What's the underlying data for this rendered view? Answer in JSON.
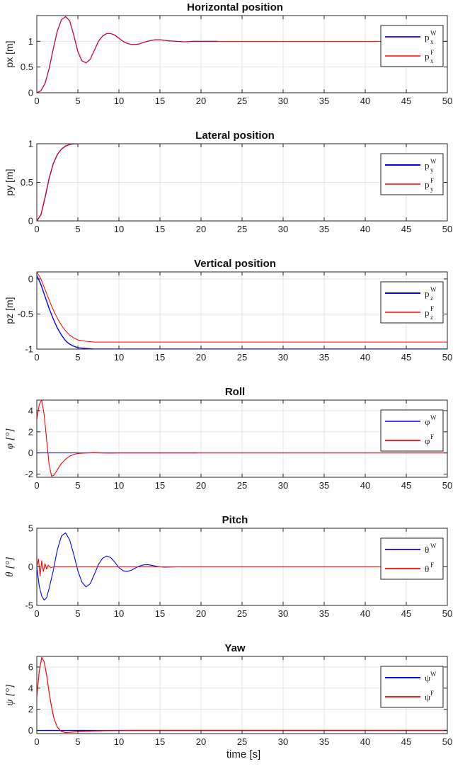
{
  "chart_data": [
    {
      "type": "line",
      "title": "Horizontal position",
      "ylabel": "px [m]",
      "ylabel_style": "plain",
      "xlim": [
        0,
        50
      ],
      "ylim": [
        0,
        1.5
      ],
      "xticks": [
        0,
        5,
        10,
        15,
        20,
        25,
        30,
        35,
        40,
        45,
        50
      ],
      "yticks": [
        0,
        0.5,
        1
      ],
      "grid": true,
      "legend_placement": "top-right",
      "series": [
        {
          "name": "p_x^W",
          "base": "p",
          "sub": "x",
          "sup": "W",
          "color": "#0000ff",
          "width": 1.2,
          "x": [
            0,
            0.5,
            1,
            1.5,
            2,
            2.5,
            3,
            3.5,
            4,
            4.5,
            5,
            5.5,
            6,
            6.5,
            7,
            7.5,
            8,
            8.5,
            9,
            9.5,
            10,
            10.5,
            11,
            11.5,
            12,
            12.5,
            13,
            13.5,
            14,
            14.5,
            15,
            15.5,
            16,
            17,
            18,
            19,
            20,
            21,
            22
          ],
          "y": [
            0,
            0.04,
            0.18,
            0.47,
            0.85,
            1.2,
            1.42,
            1.48,
            1.4,
            1.12,
            0.8,
            0.62,
            0.58,
            0.65,
            0.82,
            1.0,
            1.1,
            1.15,
            1.15,
            1.12,
            1.06,
            1.0,
            0.96,
            0.94,
            0.94,
            0.95,
            0.98,
            1.0,
            1.02,
            1.03,
            1.03,
            1.02,
            1.01,
            1.0,
            0.99,
            1.0,
            1.0,
            1.0,
            1.0
          ]
        },
        {
          "name": "p_x^F",
          "base": "p",
          "sub": "x",
          "sup": "F",
          "color": "#ff0000",
          "width": 1.0,
          "x": [
            0,
            0.5,
            1,
            1.5,
            2,
            2.5,
            3,
            3.5,
            4,
            4.5,
            5,
            5.5,
            6,
            6.5,
            7,
            7.5,
            8,
            8.5,
            9,
            9.5,
            10,
            10.5,
            11,
            11.5,
            12,
            12.5,
            13,
            13.5,
            14,
            14.5,
            15,
            15.5,
            16,
            17,
            18,
            19,
            20,
            21,
            22,
            50
          ],
          "y": [
            0,
            0.04,
            0.18,
            0.47,
            0.85,
            1.2,
            1.42,
            1.48,
            1.4,
            1.12,
            0.8,
            0.62,
            0.58,
            0.65,
            0.82,
            1.0,
            1.1,
            1.15,
            1.15,
            1.12,
            1.06,
            1.0,
            0.96,
            0.94,
            0.94,
            0.95,
            0.98,
            1.0,
            1.02,
            1.03,
            1.03,
            1.02,
            1.01,
            1.0,
            0.99,
            1.0,
            1.0,
            1.0,
            1.0,
            1.0
          ]
        }
      ]
    },
    {
      "type": "line",
      "title": "Lateral position",
      "ylabel": "py [m]",
      "ylabel_style": "plain",
      "xlim": [
        0,
        50
      ],
      "ylim": [
        0,
        1
      ],
      "xticks": [
        0,
        5,
        10,
        15,
        20,
        25,
        30,
        35,
        40,
        45,
        50
      ],
      "yticks": [
        0,
        0.5,
        1
      ],
      "grid": true,
      "legend_placement": "top-right",
      "series": [
        {
          "name": "p_y^W",
          "base": "p",
          "sub": "y",
          "sup": "W",
          "color": "#0000ff",
          "width": 1.4,
          "x": [
            0,
            0.5,
            1,
            1.5,
            2,
            2.5,
            3,
            3.5,
            4,
            4.5,
            5
          ],
          "y": [
            0,
            0.08,
            0.3,
            0.55,
            0.74,
            0.86,
            0.93,
            0.97,
            0.99,
            1.0,
            1.0
          ]
        },
        {
          "name": "p_y^F",
          "base": "p",
          "sub": "y",
          "sup": "F",
          "color": "#ff0000",
          "width": 1.0,
          "x": [
            0,
            0.5,
            1,
            1.5,
            2,
            2.5,
            3,
            3.5,
            4,
            4.5,
            5,
            50
          ],
          "y": [
            0,
            0.08,
            0.3,
            0.55,
            0.74,
            0.86,
            0.93,
            0.97,
            0.99,
            1.0,
            1.0,
            1.0
          ]
        }
      ]
    },
    {
      "type": "line",
      "title": "Vertical position",
      "ylabel": "pz [m]",
      "ylabel_style": "plain",
      "xlim": [
        0,
        50
      ],
      "ylim": [
        -1,
        0.1
      ],
      "xticks": [
        0,
        5,
        10,
        15,
        20,
        25,
        30,
        35,
        40,
        45,
        50
      ],
      "yticks": [
        -1,
        -0.5,
        0
      ],
      "grid": true,
      "legend_placement": "top-right",
      "series": [
        {
          "name": "p_z^W",
          "base": "p",
          "sub": "z",
          "sup": "W",
          "color": "#0000ff",
          "width": 1.4,
          "x": [
            0,
            0.5,
            1,
            1.5,
            2,
            2.5,
            3,
            3.5,
            4,
            4.5,
            5,
            6,
            7,
            8,
            50
          ],
          "y": [
            0.05,
            -0.08,
            -0.25,
            -0.42,
            -0.57,
            -0.7,
            -0.8,
            -0.88,
            -0.93,
            -0.96,
            -0.98,
            -0.99,
            -1.0,
            -1.0,
            -1.0
          ]
        },
        {
          "name": "p_z^F",
          "base": "p",
          "sub": "z",
          "sup": "F",
          "color": "#ff0000",
          "width": 1.0,
          "x": [
            0,
            0.5,
            1,
            1.5,
            2,
            2.5,
            3,
            3.5,
            4,
            4.5,
            5,
            6,
            7,
            8,
            50
          ],
          "y": [
            0.1,
            0.0,
            -0.15,
            -0.3,
            -0.44,
            -0.56,
            -0.66,
            -0.74,
            -0.8,
            -0.84,
            -0.87,
            -0.89,
            -0.9,
            -0.9,
            -0.9
          ]
        }
      ]
    },
    {
      "type": "line",
      "title": "Roll",
      "ylabel": "φ [°]",
      "ylabel_style": "greek",
      "xlim": [
        0,
        50
      ],
      "ylim": [
        -2.3,
        5
      ],
      "xticks": [
        0,
        5,
        10,
        15,
        20,
        25,
        30,
        35,
        40,
        45,
        50
      ],
      "yticks": [
        -2,
        0,
        2,
        4
      ],
      "grid": true,
      "legend_placement": "top-right",
      "series": [
        {
          "name": "φ^W",
          "base": "φ",
          "sub": "",
          "sup": "W",
          "color": "#0000ff",
          "width": 1.0,
          "x": [
            0,
            2,
            4,
            6,
            8,
            10,
            12,
            14,
            16,
            18,
            19.5
          ],
          "y": [
            0,
            0,
            0,
            0,
            0,
            0,
            0,
            0,
            0,
            0,
            0
          ]
        },
        {
          "name": "φ^F",
          "base": "φ",
          "sub": "",
          "sup": "F",
          "color": "#ff0000",
          "width": 1.1,
          "x": [
            0,
            0.3,
            0.6,
            0.9,
            1.2,
            1.5,
            1.8,
            2.1,
            2.5,
            3,
            3.5,
            4,
            4.5,
            5,
            6,
            7,
            8,
            9,
            10,
            11,
            12,
            13,
            14,
            15,
            16,
            17,
            18,
            19,
            20,
            50
          ],
          "y": [
            3.2,
            4.6,
            5.0,
            3.6,
            1.2,
            -1.1,
            -2.2,
            -2.1,
            -1.6,
            -1.0,
            -0.6,
            -0.3,
            -0.15,
            -0.05,
            0.0,
            0.03,
            0.0,
            -0.02,
            0.0,
            0.0,
            0.0,
            0.0,
            0.0,
            0.0,
            0.0,
            0.0,
            0.0,
            0.0,
            0.0,
            0.0
          ]
        }
      ]
    },
    {
      "type": "line",
      "title": "Pitch",
      "ylabel": "θ [°]",
      "ylabel_style": "greek",
      "xlim": [
        0,
        50
      ],
      "ylim": [
        -5,
        5
      ],
      "xticks": [
        0,
        5,
        10,
        15,
        20,
        25,
        30,
        35,
        40,
        45,
        50
      ],
      "yticks": [
        -5,
        0,
        5
      ],
      "grid": true,
      "legend_placement": "top-right",
      "series": [
        {
          "name": "θ^W",
          "base": "θ",
          "sub": "",
          "sup": "W",
          "color": "#0000ff",
          "width": 1.1,
          "x": [
            0,
            0.3,
            0.6,
            0.9,
            1.2,
            1.5,
            2,
            2.5,
            3,
            3.5,
            4,
            4.5,
            5,
            5.5,
            6,
            6.5,
            7,
            7.5,
            8,
            8.5,
            9,
            9.5,
            10,
            10.5,
            11,
            11.5,
            12,
            12.5,
            13,
            13.5,
            14,
            14.5,
            15,
            15.5,
            16,
            17,
            18
          ],
          "y": [
            0,
            -2.5,
            -3.8,
            -4.3,
            -4.0,
            -2.8,
            -0.5,
            2.2,
            4.0,
            4.4,
            3.5,
            1.6,
            -0.5,
            -2.0,
            -2.6,
            -2.2,
            -1.0,
            0.3,
            1.1,
            1.4,
            1.2,
            0.6,
            -0.1,
            -0.5,
            -0.6,
            -0.45,
            -0.15,
            0.1,
            0.25,
            0.28,
            0.2,
            0.08,
            0.0,
            -0.04,
            -0.03,
            0.0,
            0.0
          ]
        },
        {
          "name": "θ^F",
          "base": "θ",
          "sub": "",
          "sup": "F",
          "color": "#ff0000",
          "width": 1.1,
          "x": [
            0,
            0.2,
            0.4,
            0.6,
            0.8,
            1.0,
            1.2,
            1.4,
            1.7,
            2,
            3,
            50
          ],
          "y": [
            0,
            1.0,
            -1.2,
            0.8,
            -0.6,
            0.4,
            -0.3,
            0.2,
            -0.1,
            0.0,
            0.0,
            0.0
          ]
        }
      ]
    },
    {
      "type": "line",
      "title": "Yaw",
      "ylabel": "ψ [°]",
      "ylabel_style": "greek",
      "xlabel": "time [s]",
      "xlim": [
        0,
        50
      ],
      "ylim": [
        -0.3,
        7
      ],
      "xticks": [
        0,
        5,
        10,
        15,
        20,
        25,
        30,
        35,
        40,
        45,
        50
      ],
      "yticks": [
        0,
        2,
        4,
        6
      ],
      "grid": true,
      "legend_placement": "top-right",
      "series": [
        {
          "name": "ψ^W",
          "base": "ψ",
          "sub": "",
          "sup": "W",
          "color": "#0000ff",
          "width": 1.4,
          "x": [
            0,
            5,
            10,
            15,
            20,
            25,
            30,
            35,
            40,
            45,
            50
          ],
          "y": [
            0,
            0,
            0,
            0,
            0,
            0,
            0,
            0,
            0,
            0,
            0
          ]
        },
        {
          "name": "ψ^F",
          "base": "ψ",
          "sub": "",
          "sup": "F",
          "color": "#ff0000",
          "width": 1.2,
          "x": [
            0,
            0.3,
            0.6,
            0.9,
            1.2,
            1.5,
            1.8,
            2.1,
            2.5,
            3,
            3.5,
            4,
            4.5,
            5,
            6,
            7,
            8,
            10,
            12,
            15,
            20,
            50
          ],
          "y": [
            3.2,
            5.6,
            6.9,
            6.5,
            5.2,
            3.6,
            2.2,
            1.1,
            0.3,
            -0.1,
            -0.2,
            -0.18,
            -0.15,
            -0.12,
            -0.08,
            -0.05,
            -0.03,
            -0.01,
            0.0,
            0.0,
            0.0,
            0.0
          ]
        }
      ]
    }
  ]
}
